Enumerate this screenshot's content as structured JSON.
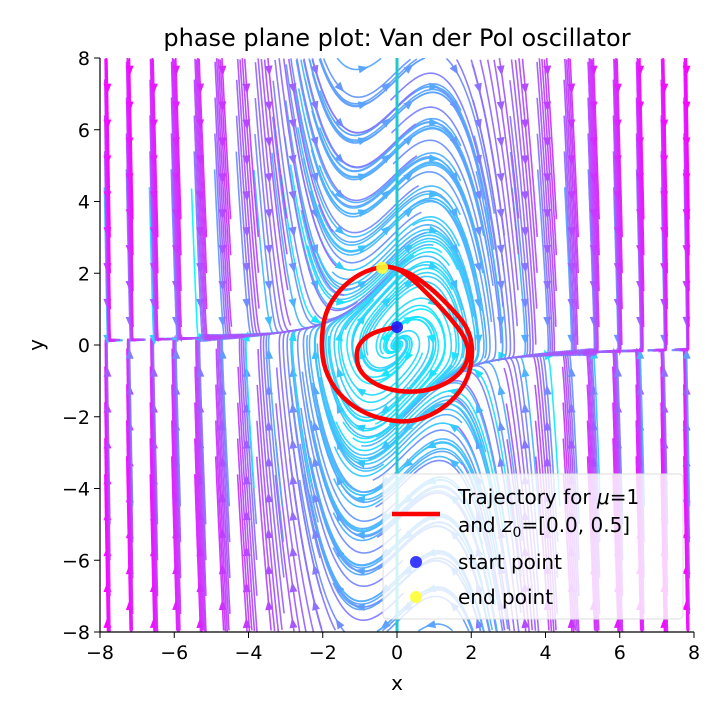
{
  "chart_data": {
    "type": "line",
    "title": "phase plane plot: Van der Pol oscillator",
    "xlabel": "x",
    "ylabel": "y",
    "xlim": [
      -8,
      8
    ],
    "ylim": [
      -8,
      8
    ],
    "xticks": [
      -8,
      -6,
      -4,
      -2,
      0,
      2,
      4,
      6,
      8
    ],
    "yticks": [
      -8,
      -6,
      -4,
      -2,
      0,
      2,
      4,
      6,
      8
    ],
    "xtick_labels": [
      "−8",
      "−6",
      "−4",
      "−2",
      "0",
      "2",
      "4",
      "6",
      "8"
    ],
    "ytick_labels": [
      "−8",
      "−6",
      "−4",
      "−2",
      "0",
      "2",
      "4",
      "6",
      "8"
    ],
    "grid": false,
    "mu": 1,
    "initial_condition": [
      0.0,
      0.5
    ],
    "series": [
      {
        "name": "Trajectory for μ=1 and z₀=[0.0, 0.5]",
        "color": "#ff0000",
        "points": [
          [
            0.0,
            0.5
          ],
          [
            -0.3,
            0.45
          ],
          [
            -0.75,
            0.3
          ],
          [
            -1.05,
            0.0
          ],
          [
            -1.1,
            -0.35
          ],
          [
            -1.0,
            -0.75
          ],
          [
            -0.6,
            -1.1
          ],
          [
            0.0,
            -1.3
          ],
          [
            0.7,
            -1.3
          ],
          [
            1.3,
            -1.1
          ],
          [
            1.75,
            -0.75
          ],
          [
            1.95,
            -0.3
          ],
          [
            1.85,
            0.2
          ],
          [
            1.4,
            0.8
          ],
          [
            0.9,
            1.35
          ],
          [
            0.4,
            1.85
          ],
          [
            0.0,
            2.15
          ],
          [
            -0.4,
            2.2
          ],
          [
            -1.0,
            2.0
          ],
          [
            -1.55,
            1.55
          ],
          [
            -1.95,
            0.9
          ],
          [
            -2.05,
            0.0
          ],
          [
            -1.95,
            -0.7
          ],
          [
            -1.6,
            -1.35
          ],
          [
            -1.0,
            -1.85
          ],
          [
            -0.3,
            -2.1
          ],
          [
            0.4,
            -2.15
          ],
          [
            1.05,
            -1.9
          ],
          [
            1.6,
            -1.45
          ],
          [
            1.95,
            -0.85
          ],
          [
            2.05,
            -0.1
          ],
          [
            1.9,
            0.5
          ],
          [
            1.45,
            1.05
          ],
          [
            0.9,
            1.6
          ],
          [
            0.3,
            2.05
          ],
          [
            -0.3,
            2.2
          ],
          [
            -0.4,
            2.15
          ]
        ]
      }
    ],
    "points": [
      {
        "name": "start point",
        "x": 0.0,
        "y": 0.5,
        "color": "#1a1aff"
      },
      {
        "name": "end point",
        "x": -0.4,
        "y": 2.15,
        "color": "#ffff33"
      }
    ],
    "streamplot": {
      "colormap": "cool",
      "description": "streamlines of the Van der Pol vector field; speed-coloured cyan to magenta"
    },
    "legend": {
      "position": "lower-right",
      "trajectory_line1": "Trajectory for ",
      "trajectory_mu": "μ",
      "trajectory_line1_tail": "=1",
      "trajectory_line2_head": "and ",
      "trajectory_z": "z",
      "trajectory_sub": "0",
      "trajectory_line2_tail": "=[0.0, 0.5]",
      "start_label": "start point",
      "end_label": "end point"
    }
  }
}
